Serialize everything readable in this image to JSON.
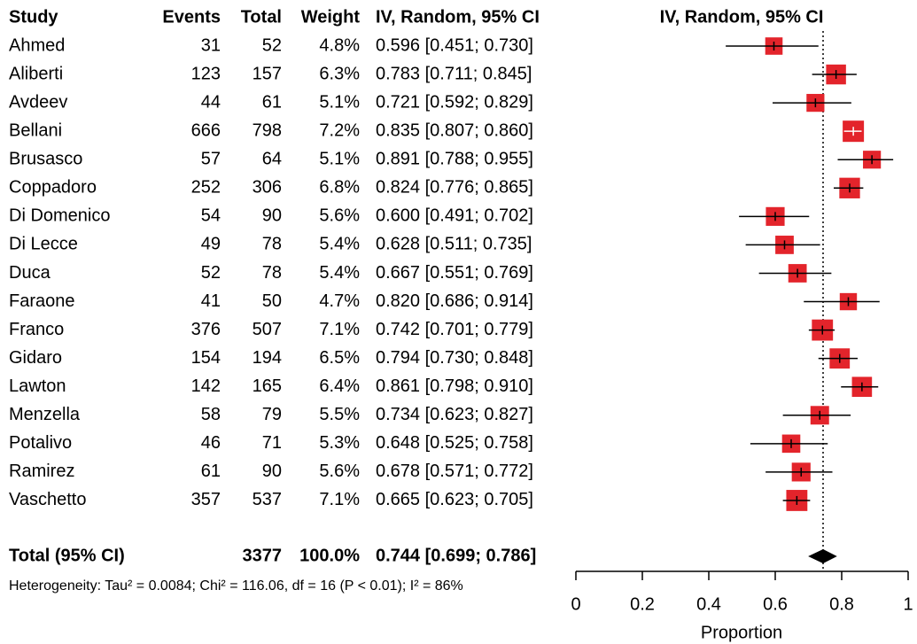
{
  "chart_data": {
    "type": "forest",
    "columns": [
      "Study",
      "Events",
      "Total",
      "Weight",
      "IV, Random, 95% CI"
    ],
    "plot_header": "IV, Random, 95% CI",
    "studies": [
      {
        "name": "Ahmed",
        "events": 31,
        "total": 52,
        "weight": 4.8,
        "weight_label": "4.8%",
        "estimate": 0.596,
        "lower": 0.451,
        "upper": 0.73,
        "ci_label": "0.596 [0.451; 0.730]"
      },
      {
        "name": "Aliberti",
        "events": 123,
        "total": 157,
        "weight": 6.3,
        "weight_label": "6.3%",
        "estimate": 0.783,
        "lower": 0.711,
        "upper": 0.845,
        "ci_label": "0.783 [0.711; 0.845]"
      },
      {
        "name": "Avdeev",
        "events": 44,
        "total": 61,
        "weight": 5.1,
        "weight_label": "5.1%",
        "estimate": 0.721,
        "lower": 0.592,
        "upper": 0.829,
        "ci_label": "0.721 [0.592; 0.829]"
      },
      {
        "name": "Bellani",
        "events": 666,
        "total": 798,
        "weight": 7.2,
        "weight_label": "7.2%",
        "estimate": 0.835,
        "lower": 0.807,
        "upper": 0.86,
        "ci_label": "0.835 [0.807; 0.860]"
      },
      {
        "name": "Brusasco",
        "events": 57,
        "total": 64,
        "weight": 5.1,
        "weight_label": "5.1%",
        "estimate": 0.891,
        "lower": 0.788,
        "upper": 0.955,
        "ci_label": "0.891 [0.788; 0.955]"
      },
      {
        "name": "Coppadoro",
        "events": 252,
        "total": 306,
        "weight": 6.8,
        "weight_label": "6.8%",
        "estimate": 0.824,
        "lower": 0.776,
        "upper": 0.865,
        "ci_label": "0.824 [0.776; 0.865]"
      },
      {
        "name": "Di Domenico",
        "events": 54,
        "total": 90,
        "weight": 5.6,
        "weight_label": "5.6%",
        "estimate": 0.6,
        "lower": 0.491,
        "upper": 0.702,
        "ci_label": "0.600 [0.491; 0.702]"
      },
      {
        "name": "Di Lecce",
        "events": 49,
        "total": 78,
        "weight": 5.4,
        "weight_label": "5.4%",
        "estimate": 0.628,
        "lower": 0.511,
        "upper": 0.735,
        "ci_label": "0.628 [0.511; 0.735]"
      },
      {
        "name": "Duca",
        "events": 52,
        "total": 78,
        "weight": 5.4,
        "weight_label": "5.4%",
        "estimate": 0.667,
        "lower": 0.551,
        "upper": 0.769,
        "ci_label": "0.667 [0.551; 0.769]"
      },
      {
        "name": "Faraone",
        "events": 41,
        "total": 50,
        "weight": 4.7,
        "weight_label": "4.7%",
        "estimate": 0.82,
        "lower": 0.686,
        "upper": 0.914,
        "ci_label": "0.820 [0.686; 0.914]"
      },
      {
        "name": "Franco",
        "events": 376,
        "total": 507,
        "weight": 7.1,
        "weight_label": "7.1%",
        "estimate": 0.742,
        "lower": 0.701,
        "upper": 0.779,
        "ci_label": "0.742 [0.701; 0.779]"
      },
      {
        "name": "Gidaro",
        "events": 154,
        "total": 194,
        "weight": 6.5,
        "weight_label": "6.5%",
        "estimate": 0.794,
        "lower": 0.73,
        "upper": 0.848,
        "ci_label": "0.794 [0.730; 0.848]"
      },
      {
        "name": "Lawton",
        "events": 142,
        "total": 165,
        "weight": 6.4,
        "weight_label": "6.4%",
        "estimate": 0.861,
        "lower": 0.798,
        "upper": 0.91,
        "ci_label": "0.861 [0.798; 0.910]"
      },
      {
        "name": "Menzella",
        "events": 58,
        "total": 79,
        "weight": 5.5,
        "weight_label": "5.5%",
        "estimate": 0.734,
        "lower": 0.623,
        "upper": 0.827,
        "ci_label": "0.734 [0.623; 0.827]"
      },
      {
        "name": "Potalivo",
        "events": 46,
        "total": 71,
        "weight": 5.3,
        "weight_label": "5.3%",
        "estimate": 0.648,
        "lower": 0.525,
        "upper": 0.758,
        "ci_label": "0.648 [0.525; 0.758]"
      },
      {
        "name": "Ramirez",
        "events": 61,
        "total": 90,
        "weight": 5.6,
        "weight_label": "5.6%",
        "estimate": 0.678,
        "lower": 0.571,
        "upper": 0.772,
        "ci_label": "0.678 [0.571; 0.772]"
      },
      {
        "name": "Vaschetto",
        "events": 357,
        "total": 537,
        "weight": 7.1,
        "weight_label": "7.1%",
        "estimate": 0.665,
        "lower": 0.623,
        "upper": 0.705,
        "ci_label": "0.665 [0.623; 0.705]"
      }
    ],
    "pooled": {
      "name": "Total (95% CI)",
      "total": 3377,
      "weight": 100,
      "weight_label": "100.0%",
      "estimate": 0.744,
      "lower": 0.699,
      "upper": 0.786,
      "ci_label": "0.744 [0.699; 0.786]"
    },
    "heterogeneity": "Heterogeneity: Tau² = 0.0084; Chi² = 116.06, df = 16 (P < 0.01); I² = 86%",
    "xlim": [
      0,
      1
    ],
    "xticks": [
      0,
      0.2,
      0.4,
      0.6,
      0.8,
      1
    ],
    "xlabel": "Proportion",
    "box_color": "#e3242b",
    "pooled_color": "#000000"
  }
}
